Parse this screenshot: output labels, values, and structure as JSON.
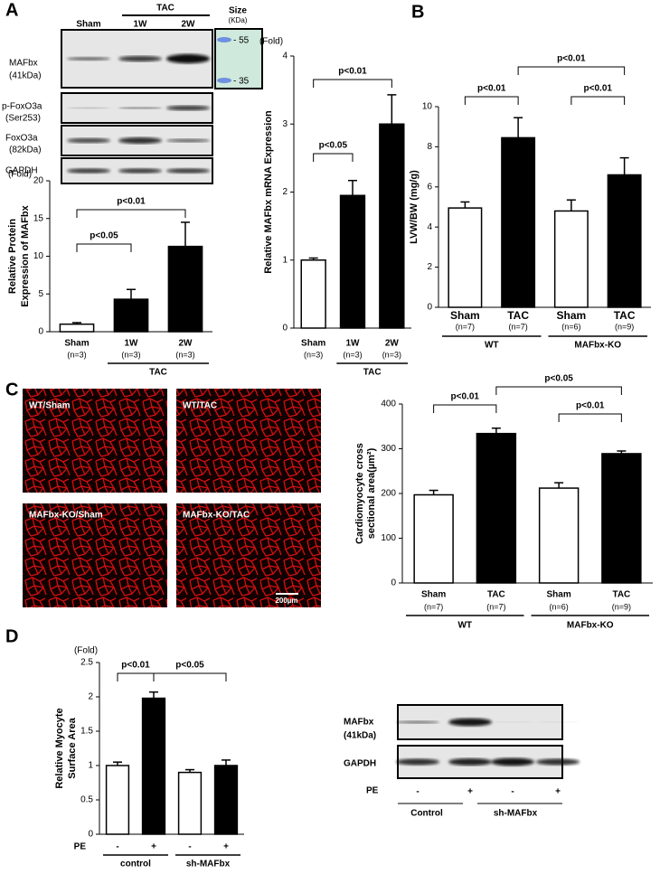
{
  "panels": {
    "a": "A",
    "b": "B",
    "c": "C",
    "d": "D"
  },
  "blot_a": {
    "header": {
      "sham": "Sham",
      "tac": "TAC",
      "w1": "1W",
      "w2": "2W"
    },
    "size": {
      "title": "Size",
      "unit": "(KDa)",
      "m55": "- 55",
      "m35": "- 35"
    },
    "rows": [
      [
        "MAFbx",
        "(41kDa)"
      ],
      [
        "p-FoxO3a",
        "(Ser253)"
      ],
      [
        "FoxO3a",
        "(82kDa)"
      ],
      [
        "GAPDH"
      ]
    ]
  },
  "micrographs": {
    "labels": [
      "WT/Sham",
      "WT/TAC",
      "MAFbx-KO/Sham",
      "MAFbx-KO/TAC"
    ],
    "scale": "200µm"
  },
  "blot_d": {
    "rows": [
      [
        "MAFbx",
        "(41kDa)"
      ],
      [
        "GAPDH"
      ]
    ],
    "pe": "PE",
    "signs": [
      "-",
      "+",
      "-",
      "+"
    ],
    "groups": [
      "Control",
      "sh-MAFbx"
    ]
  },
  "chart_data": [
    {
      "type": "bar",
      "unit": "(Fold)",
      "ylabel": [
        "Relative Protein",
        "Expression of MAFbx"
      ],
      "categories": [
        "Sham",
        "1W",
        "2W"
      ],
      "sublabels": [
        "(n=3)",
        "(n=3)",
        "(n=3)"
      ],
      "groups": [
        null,
        "TAC",
        "TAC"
      ],
      "values": [
        1,
        4.3,
        11.3
      ],
      "errors": [
        0.2,
        1.3,
        3.2
      ],
      "colors": [
        "#ffffff",
        "#000000",
        "#000000"
      ],
      "ylim": [
        0,
        20
      ],
      "yticks": [
        0,
        5,
        10,
        15,
        20
      ],
      "comparisons": [
        {
          "label": "p<0.05",
          "pair": [
            0,
            1
          ]
        },
        {
          "label": "p<0.01",
          "pair": [
            0,
            2
          ]
        }
      ]
    },
    {
      "type": "bar",
      "unit": "(Fold)",
      "ylabel": [
        "Relative MAFbx mRNA Expression"
      ],
      "categories": [
        "Sham",
        "1W",
        "2W"
      ],
      "sublabels": [
        "(n=3)",
        "(n=3)",
        "(n=3)"
      ],
      "groups": [
        null,
        "TAC",
        "TAC"
      ],
      "values": [
        1,
        1.95,
        3
      ],
      "errors": [
        0.03,
        0.22,
        0.43
      ],
      "colors": [
        "#ffffff",
        "#000000",
        "#000000"
      ],
      "ylim": [
        0,
        4
      ],
      "yticks": [
        0,
        1,
        2,
        3,
        4
      ],
      "comparisons": [
        {
          "label": "p<0.05",
          "pair": [
            0,
            1
          ]
        },
        {
          "label": "p<0.01",
          "pair": [
            0,
            2
          ]
        }
      ]
    },
    {
      "type": "bar",
      "ylabel": [
        "LVW/BW (mg/g)"
      ],
      "categories": [
        "Sham",
        "TAC",
        "Sham",
        "TAC"
      ],
      "sublabels": [
        "(n=7)",
        "(n=7)",
        "(n=6)",
        "(n=9)"
      ],
      "groups": [
        "WT",
        "WT",
        "MAFbx-KO",
        "MAFbx-KO"
      ],
      "values": [
        4.95,
        8.45,
        4.8,
        6.6
      ],
      "errors": [
        0.3,
        1,
        0.55,
        0.85
      ],
      "colors": [
        "#ffffff",
        "#000000",
        "#ffffff",
        "#000000"
      ],
      "ylim": [
        0,
        10
      ],
      "yticks": [
        0,
        2,
        4,
        6,
        8,
        10
      ],
      "comparisons": [
        {
          "label": "p<0.01",
          "pair": [
            0,
            1
          ]
        },
        {
          "label": "p<0.01",
          "pair": [
            2,
            3
          ]
        },
        {
          "label": "p<0.01",
          "pair": [
            1,
            3
          ]
        }
      ]
    },
    {
      "type": "bar",
      "ylabel": [
        "Cardiomyocyte cross",
        "sectional area(µm²)"
      ],
      "categories": [
        "Sham",
        "TAC",
        "Sham",
        "TAC"
      ],
      "sublabels": [
        "(n=7)",
        "(n=7)",
        "(n=6)",
        "(n=9)"
      ],
      "groups": [
        "WT",
        "WT",
        "MAFbx-KO",
        "MAFbx-KO"
      ],
      "values": [
        197,
        334,
        212,
        289
      ],
      "errors": [
        10,
        12,
        12,
        6
      ],
      "colors": [
        "#ffffff",
        "#000000",
        "#ffffff",
        "#000000"
      ],
      "ylim": [
        0,
        400
      ],
      "yticks": [
        0,
        100,
        200,
        300,
        400
      ],
      "comparisons": [
        {
          "label": "p<0.01",
          "pair": [
            0,
            1
          ]
        },
        {
          "label": "p<0.01",
          "pair": [
            2,
            3
          ]
        },
        {
          "label": "p<0.05",
          "pair": [
            1,
            3
          ]
        }
      ]
    },
    {
      "type": "bar",
      "unit": "(Fold)",
      "ylabel": [
        "Relative Myocyte",
        "Surface Area"
      ],
      "xlabel": "PE",
      "categories": [
        "-",
        "+",
        "-",
        "+"
      ],
      "groups": [
        "control",
        "control",
        "sh-MAFbx",
        "sh-MAFbx"
      ],
      "values": [
        1,
        1.98,
        0.9,
        1
      ],
      "errors": [
        0.05,
        0.09,
        0.04,
        0.08
      ],
      "colors": [
        "#ffffff",
        "#000000",
        "#ffffff",
        "#000000"
      ],
      "ylim": [
        0,
        2.5
      ],
      "yticks": [
        0,
        0.5,
        1,
        1.5,
        2,
        2.5
      ],
      "comparisons": [
        {
          "label": "p<0.01",
          "pair": [
            0,
            1
          ]
        },
        {
          "label": "p<0.05",
          "pair": [
            1,
            3
          ]
        }
      ]
    }
  ]
}
